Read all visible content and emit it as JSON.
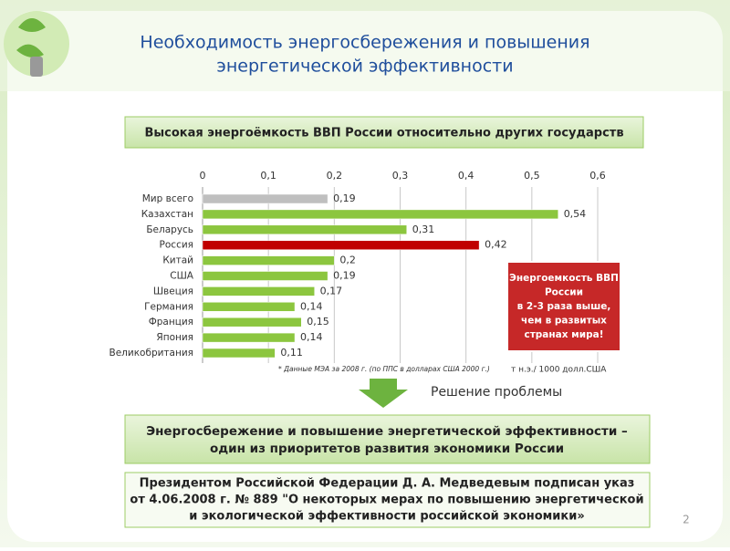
{
  "header": {
    "title_line1": "Необходимость энергосбережения и повышения",
    "title_line2": "энергетической эффективности"
  },
  "banner": "Высокая энергоёмкость ВВП России относительно других государств",
  "chart_data": {
    "type": "bar",
    "orientation": "horizontal",
    "categories": [
      "Мир всего",
      "Казахстан",
      "Беларусь",
      "Россия",
      "Китай",
      "США",
      "Швеция",
      "Германия",
      "Франция",
      "Япония",
      "Великобритания"
    ],
    "values": [
      0.19,
      0.54,
      0.31,
      0.42,
      0.2,
      0.19,
      0.17,
      0.14,
      0.15,
      0.14,
      0.11
    ],
    "value_labels": [
      "0,19",
      "0,54",
      "0,31",
      "0,42",
      "0,2",
      "0,19",
      "0,17",
      "0,14",
      "0,15",
      "0,14",
      "0,11"
    ],
    "colors": [
      "#bfbfbf",
      "#8cc63f",
      "#8cc63f",
      "#c00000",
      "#8cc63f",
      "#8cc63f",
      "#8cc63f",
      "#8cc63f",
      "#8cc63f",
      "#8cc63f",
      "#8cc63f"
    ],
    "xlim": [
      0,
      0.6
    ],
    "xticks": [
      0,
      {
        "value": 0.1,
        "label": "0,1"
      },
      {
        "value": 0.2,
        "label": "0,2"
      },
      {
        "value": 0.3,
        "label": "0,3"
      },
      {
        "value": 0.4,
        "label": "0,4"
      },
      {
        "value": 0.5,
        "label": "0,5"
      },
      {
        "value": 0.6,
        "label": "0,6"
      }
    ],
    "grid": true,
    "footnote": "* Данные МЭА за 2008 г. (по ППС в долларах США 2000 г.)",
    "unit": "т н.э./ 1000 долл.США"
  },
  "callout": [
    "Энергоемкость ВВП",
    "России",
    "в 2-3 раза выше,",
    "чем в развитых",
    "странах мира!"
  ],
  "solution": "Решение проблемы",
  "priority": [
    "Энергосбережение и повышение энергетической эффективности –",
    "один из приоритетов развития экономики России"
  ],
  "decree": [
    "Президентом Российской Федерации Д. А. Медведевым подписан указ",
    "от 4.06.2008 г.  № 889 \"О некоторых мерах по повышению энергетической",
    "и экологической эффективности российской экономики»"
  ],
  "page_number": "2"
}
